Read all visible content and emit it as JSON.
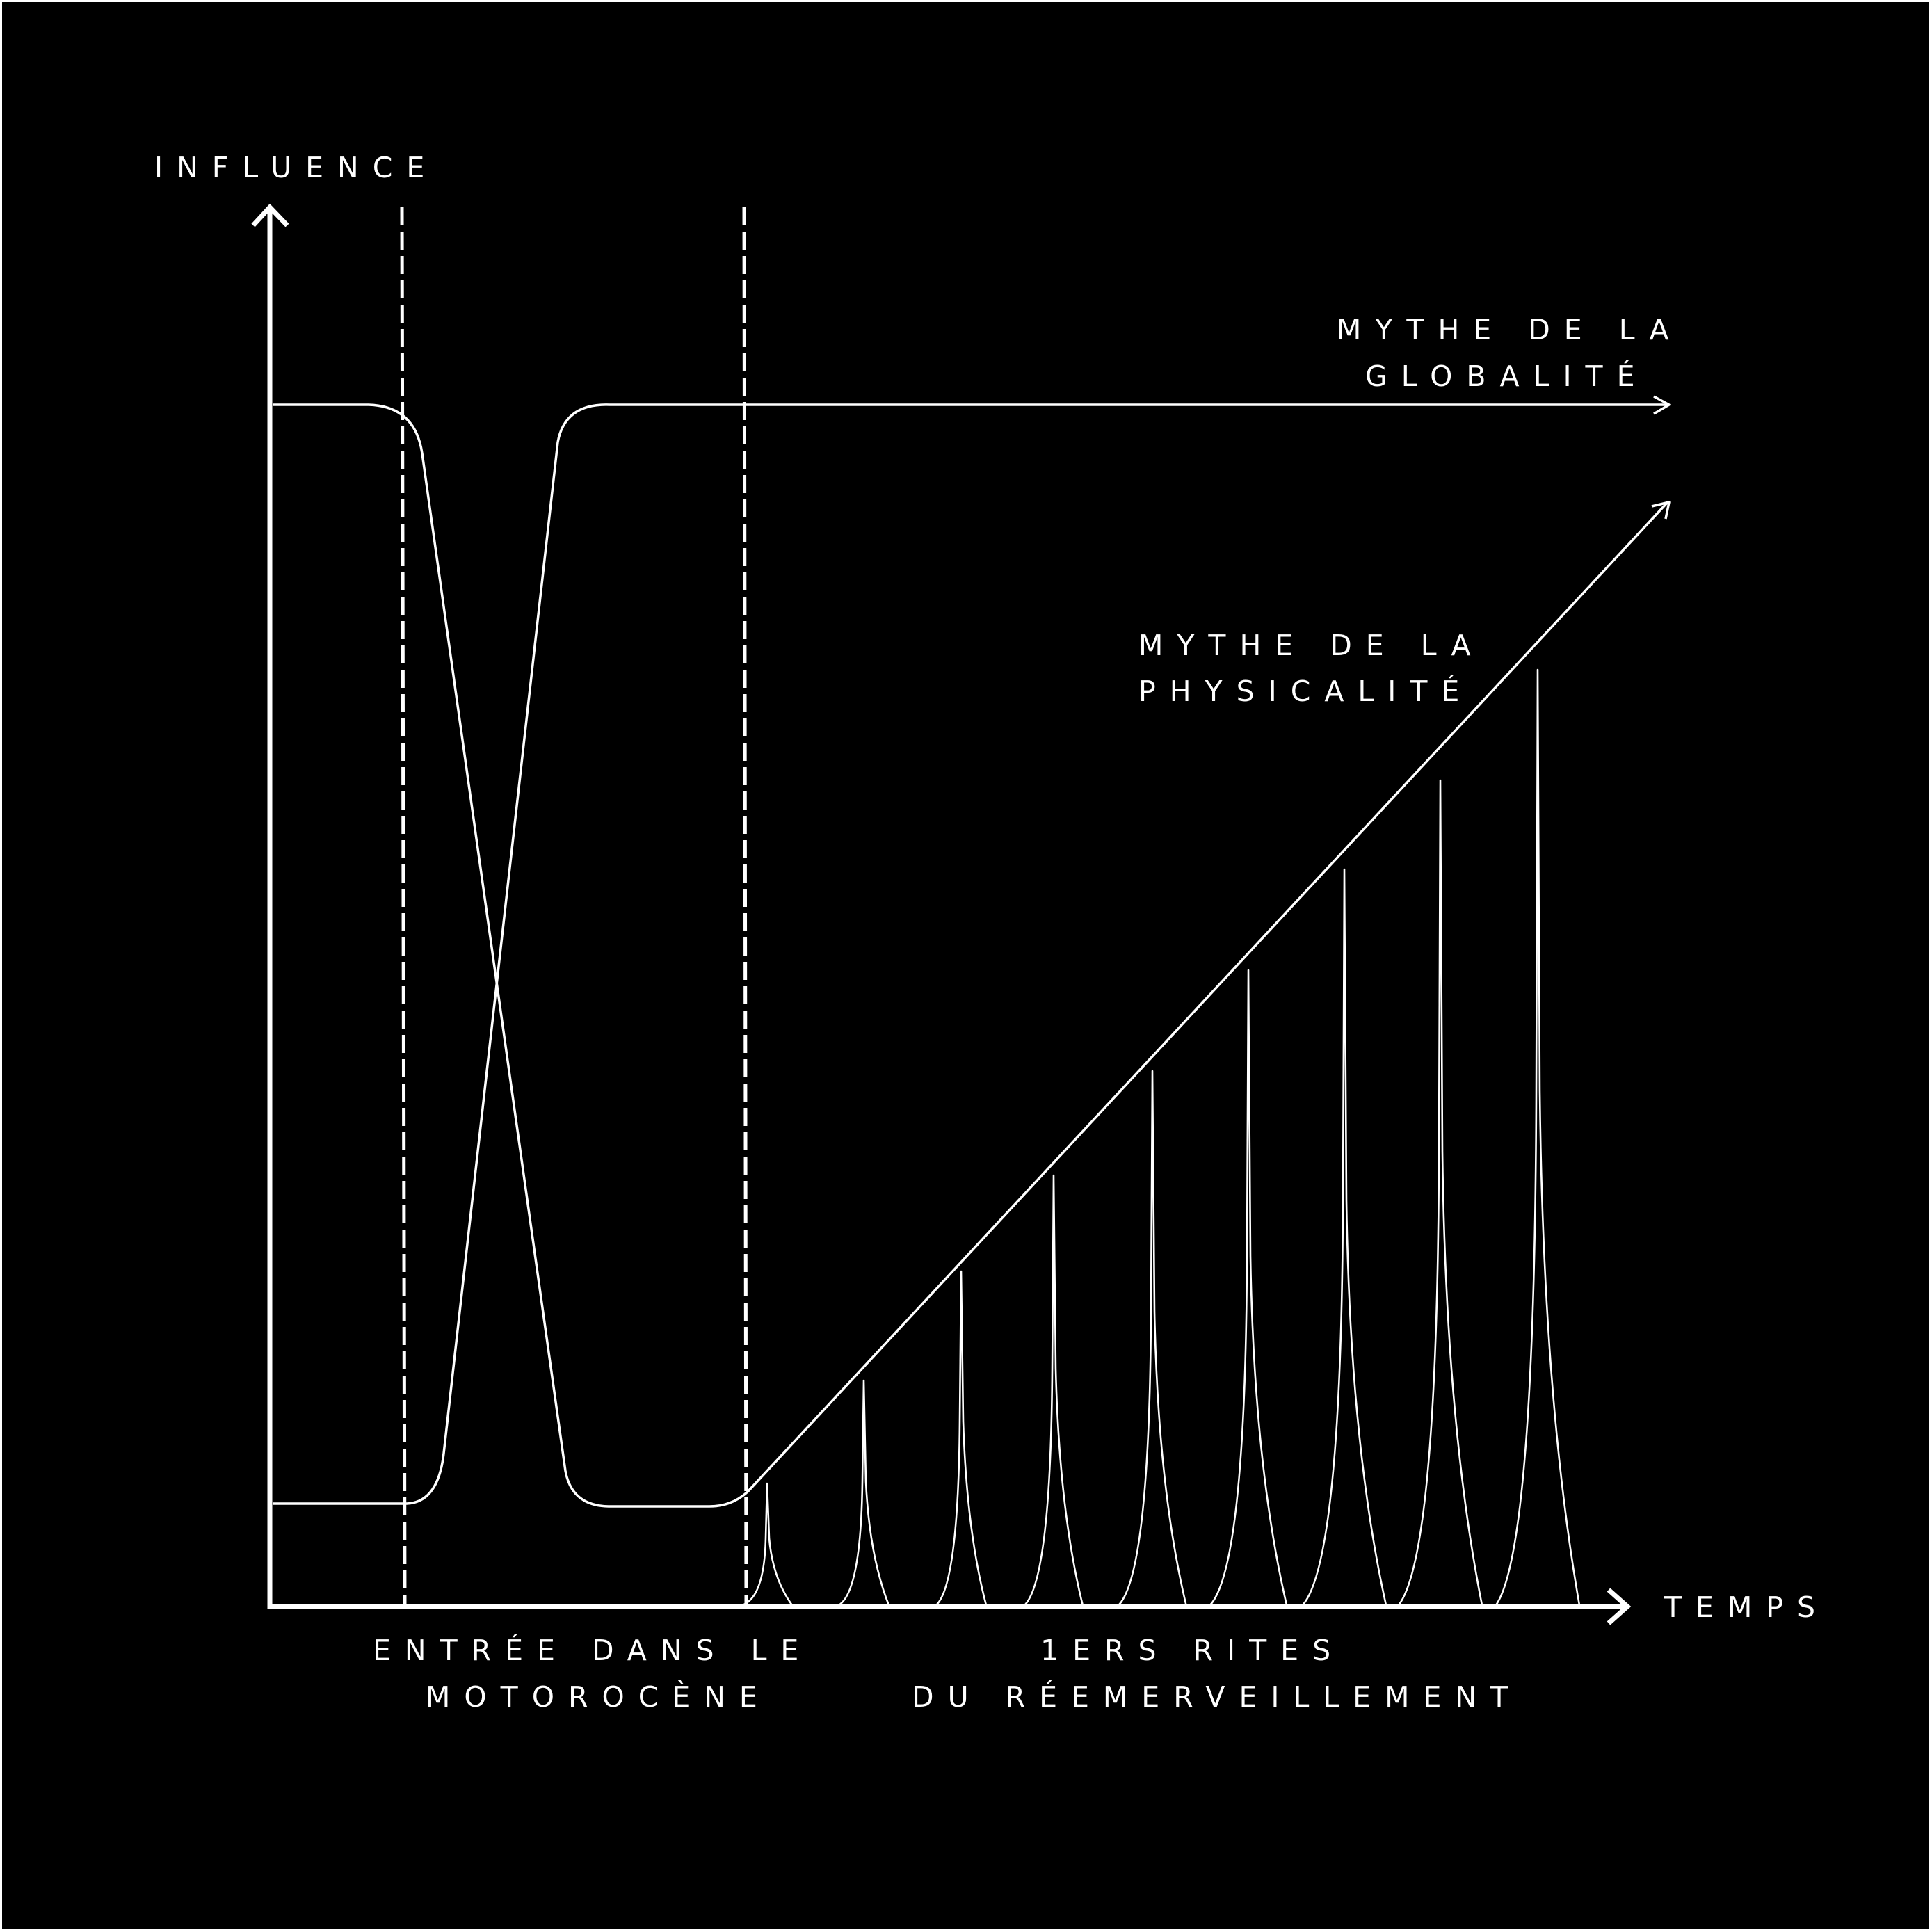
{
  "diagram": {
    "background_color": "#000000",
    "frame_color": "#ffffff",
    "line_color": "#ffffff",
    "axes": {
      "y_label": "INFLUENCE",
      "x_label": "TEMPS"
    },
    "curves": {
      "globality": {
        "label_line1": "MYTHE DE LA",
        "label_line2": "GLOBALITÉ"
      },
      "physicality": {
        "label_line1": "MYTHE DE LA",
        "label_line2": "PHYSICALITÉ"
      }
    },
    "phases": {
      "motorocene": {
        "label_line1": "ENTRÉE DANS LE",
        "label_line2": "MOTOROCÈNE"
      },
      "rites": {
        "label_line1": "1ERS RITES",
        "label_line2": "DU RÉEMERVEILLEMENT"
      }
    }
  }
}
